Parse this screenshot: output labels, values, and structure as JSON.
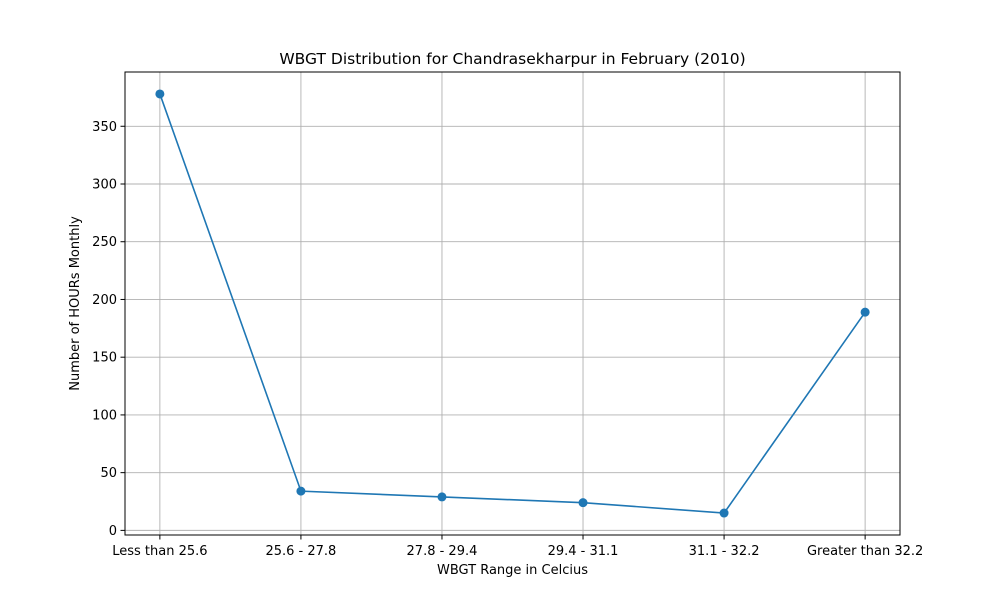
{
  "chart_data": {
    "type": "line",
    "title": "WBGT Distribution for Chandrasekharpur in February (2010)",
    "xlabel": "WBGT Range in Celcius",
    "ylabel": "Number of HOURs Monthly",
    "categories": [
      "Less than 25.6",
      "25.6 - 27.8",
      "27.8 - 29.4",
      "29.4 - 31.1",
      "31.1 - 32.2",
      "Greater than 32.2"
    ],
    "series": [
      {
        "values": [
          378,
          34,
          29,
          24,
          15,
          189
        ],
        "color": "#1f77b4"
      }
    ],
    "yticks": [
      0,
      50,
      100,
      150,
      200,
      250,
      300,
      350
    ],
    "ylim": [
      -4,
      397
    ],
    "grid": true,
    "marker": "circle"
  }
}
